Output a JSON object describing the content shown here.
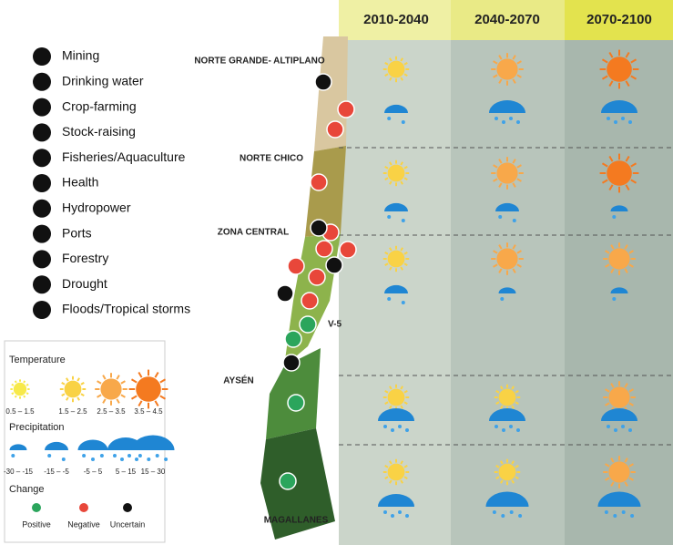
{
  "periods": [
    "2010-2040",
    "2040-2070",
    "2070-2100"
  ],
  "sectors": [
    "Mining",
    "Drinking water",
    "Crop-farming",
    "Stock-raising",
    "Fisheries/Aquaculture",
    "Health",
    "Hydropower",
    "Ports",
    "Forestry",
    "Drought",
    "Floods/Tropical storms"
  ],
  "regions": [
    {
      "name": "NORTE GRANDE- ALTIPLANO",
      "temperature": [
        2,
        3,
        4
      ],
      "precipitation": [
        2,
        4,
        4
      ]
    },
    {
      "name": "NORTE CHICO",
      "temperature": [
        2,
        3,
        4
      ],
      "precipitation": [
        2,
        2,
        1
      ]
    },
    {
      "name": "ZONA CENTRAL",
      "temperature": [
        2,
        3,
        3
      ],
      "precipitation": [
        2,
        1,
        1
      ]
    },
    {
      "name": "AYSÉN",
      "temperature": [
        2,
        2,
        3
      ],
      "precipitation": [
        4,
        4,
        4
      ]
    },
    {
      "name": "MAGALLANES",
      "temperature": [
        2,
        2,
        3
      ],
      "precipitation": [
        4,
        5,
        5
      ]
    }
  ],
  "map_labels": [
    "V-5"
  ],
  "legend": {
    "temperature": {
      "title": "Temperature",
      "ranges": [
        "0.5 – 1.5",
        "1.5 – 2.5",
        "2.5 – 3.5",
        "3.5 – 4.5"
      ]
    },
    "precipitation": {
      "title": "Precipitation",
      "ranges": [
        "-30 – -15",
        "-15 – -5",
        "-5 – 5",
        "5 – 15",
        "15 – 30"
      ]
    },
    "change": {
      "title": "Change",
      "labels": [
        "Positive",
        "Negative",
        "Uncertain"
      ]
    }
  }
}
